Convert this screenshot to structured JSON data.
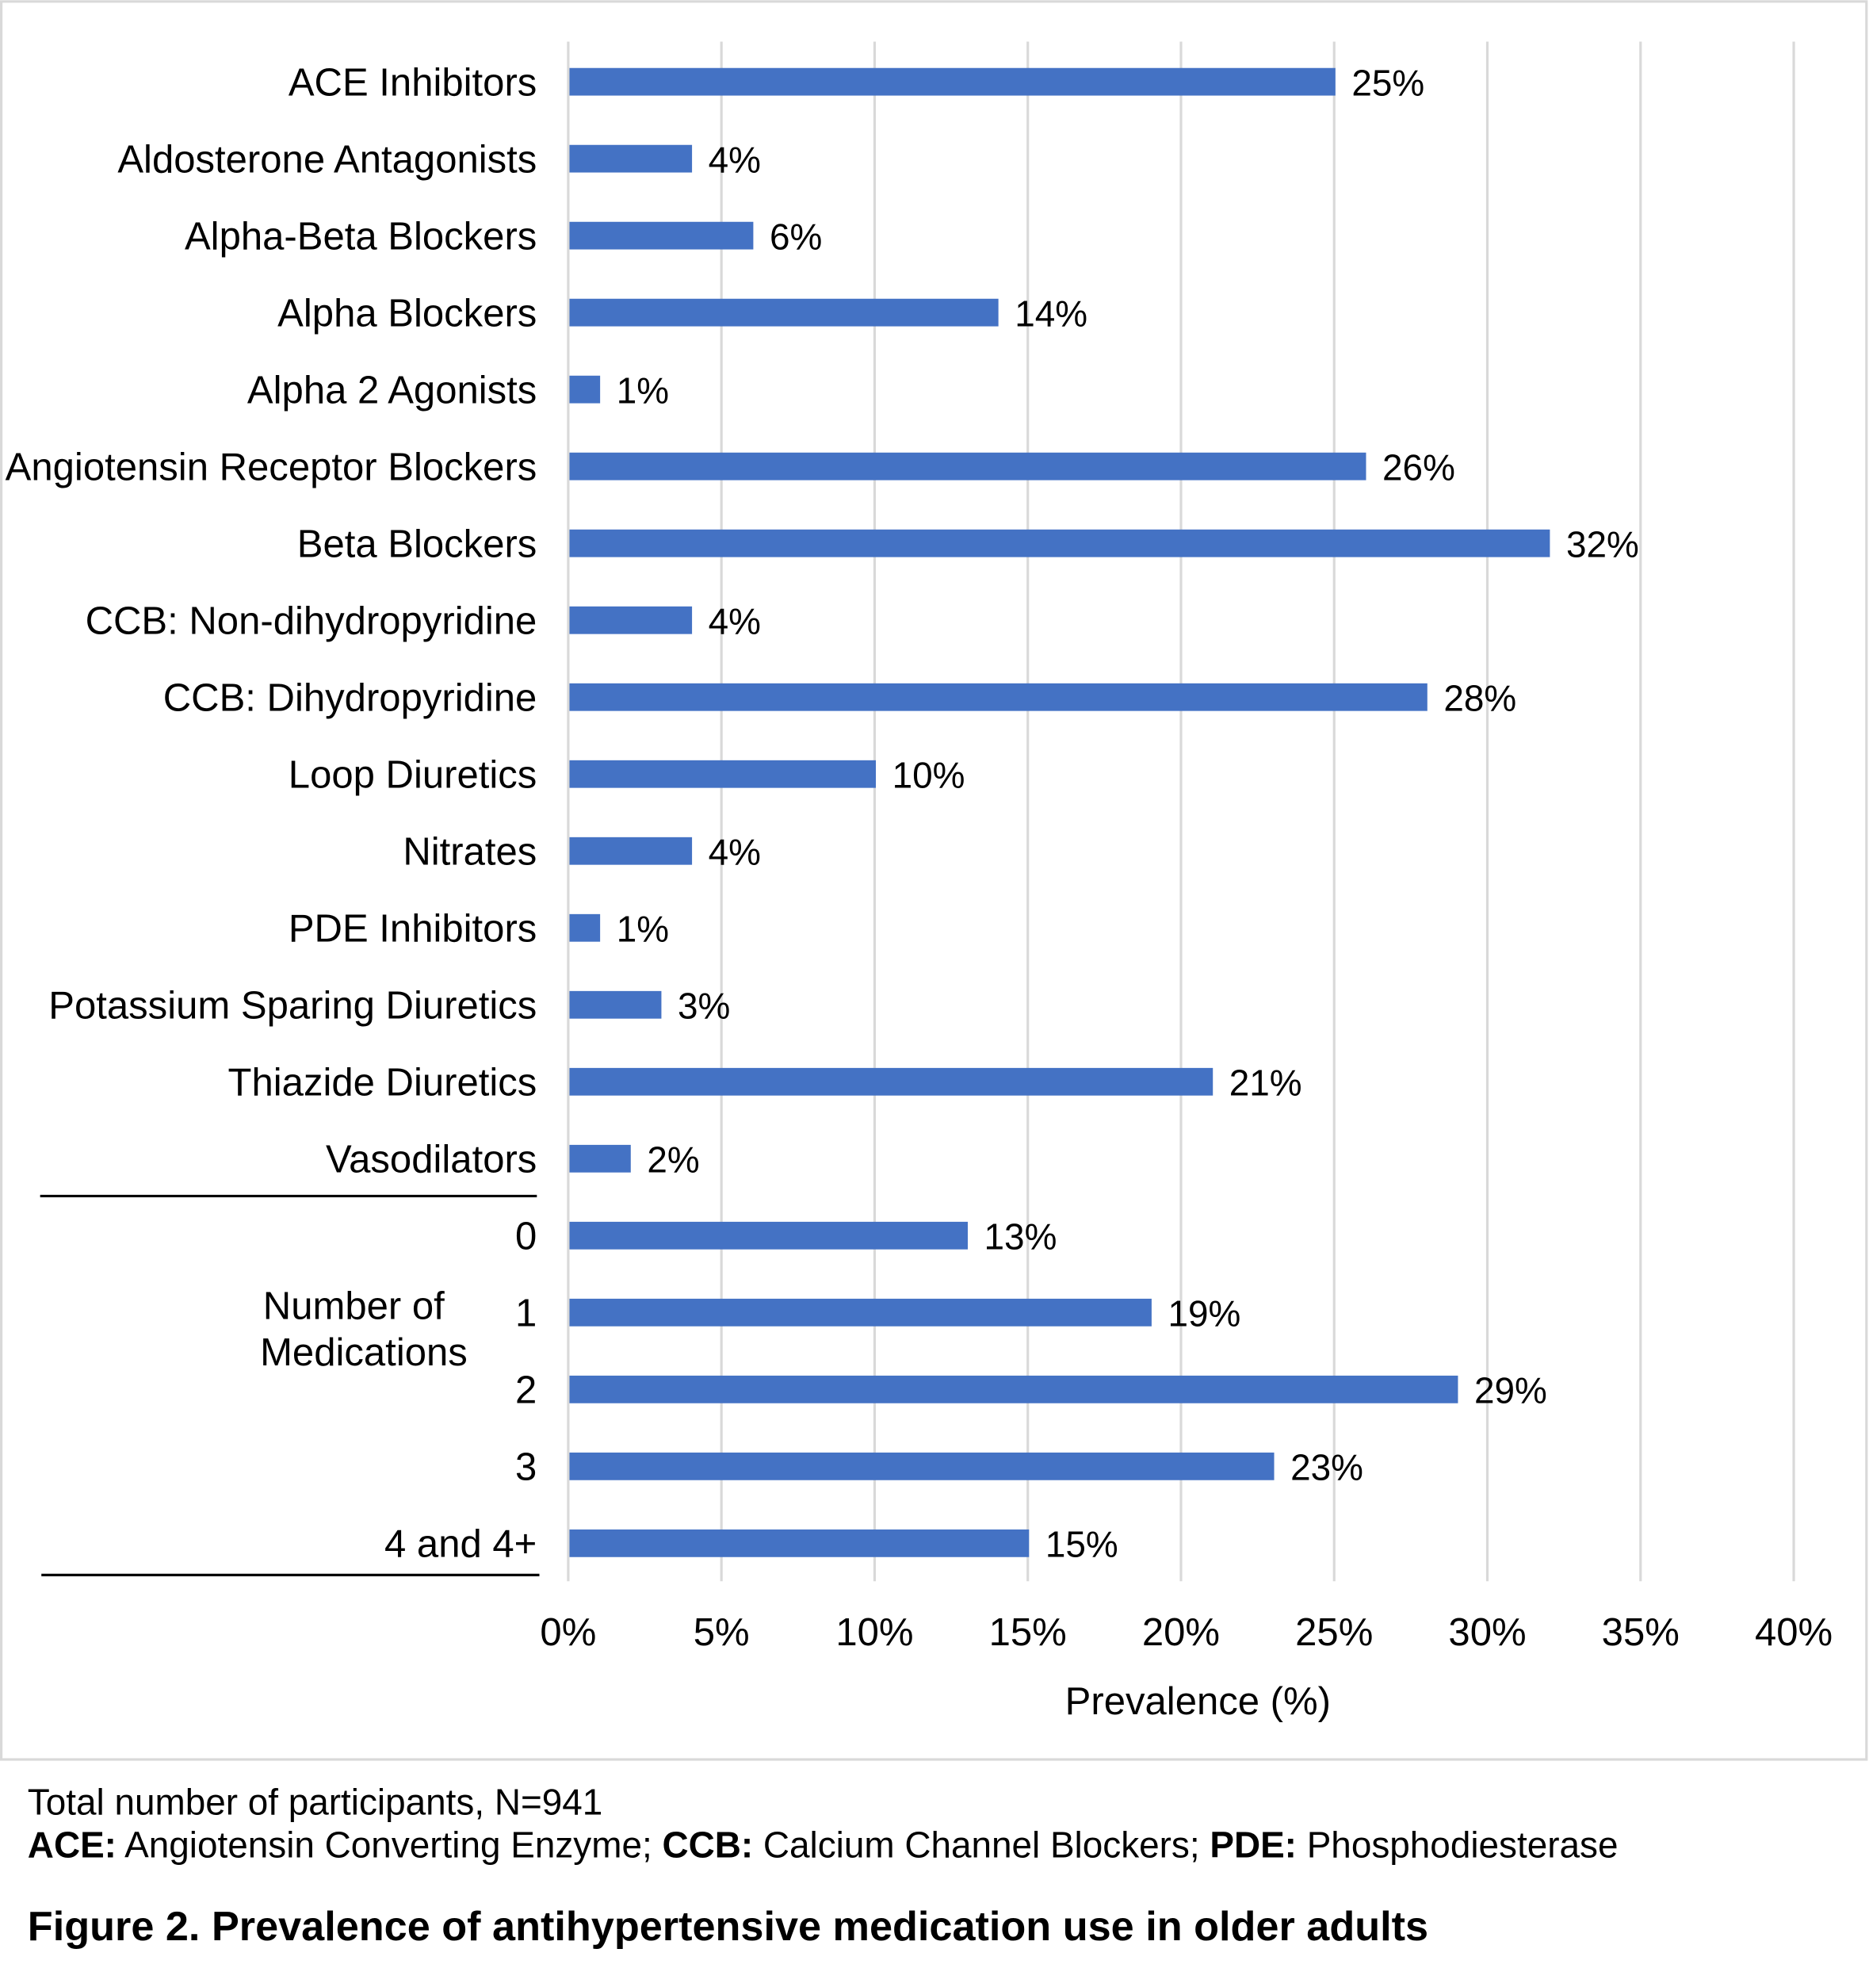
{
  "chart_data": {
    "type": "bar",
    "orientation": "horizontal",
    "categories": [
      "ACE Inhibitors",
      "Aldosterone Antagonists",
      "Alpha-Beta Blockers",
      "Alpha Blockers",
      "Alpha 2 Agonists",
      "Angiotensin Receptor Blockers",
      "Beta Blockers",
      "CCB: Non-dihydropyridine",
      "CCB: Dihydropyridine",
      "Loop Diuretics",
      "Nitrates",
      "PDE Inhibitors",
      "Potassium Sparing Diuretics",
      "Thiazide Diuretics",
      "Vasodilators",
      "0",
      "1",
      "2",
      "3",
      "4 and 4+"
    ],
    "values": [
      25,
      4,
      6,
      14,
      1,
      26,
      32,
      4,
      28,
      10,
      4,
      1,
      3,
      21,
      2,
      13,
      19,
      29,
      23,
      15
    ],
    "data_labels": [
      "25%",
      "4%",
      "6%",
      "14%",
      "1%",
      "26%",
      "32%",
      "4%",
      "28%",
      "10%",
      "4%",
      "1%",
      "3%",
      "21%",
      "2%",
      "13%",
      "19%",
      "29%",
      "23%",
      "15%"
    ],
    "group_label": [
      "Number of",
      "Medications"
    ],
    "xlabel": "Prevalence (%)",
    "ylabel": "",
    "xlim": [
      0,
      40
    ],
    "x_ticks": [
      "0%",
      "5%",
      "10%",
      "15%",
      "20%",
      "25%",
      "30%",
      "35%",
      "40%"
    ],
    "x_tick_values": [
      0,
      5,
      10,
      15,
      20,
      25,
      30,
      35,
      40
    ],
    "grid": true,
    "legend": "none",
    "bar_color": "#4472C4",
    "grid_color": "#D9D9D9"
  },
  "footnotes": {
    "line1": "Total number of participants, N=941",
    "line2": [
      {
        "bold": "ACE:",
        "text": " Angiotensin Converting Enzyme; "
      },
      {
        "bold": "CCB:",
        "text": " Calcium Channel Blockers; "
      },
      {
        "bold": "PDE:",
        "text": " Phosphodiesterase"
      }
    ]
  },
  "figure_title": "Figure 2. Prevalence of antihypertensive medication use in older adults"
}
